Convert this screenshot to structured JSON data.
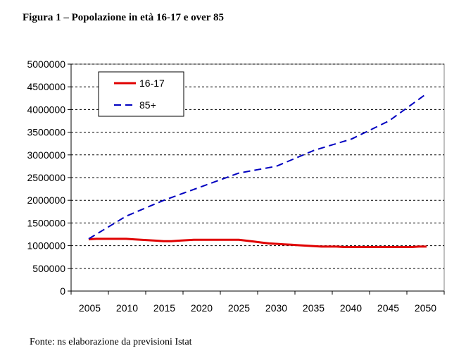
{
  "figure": {
    "title": "Figura 1 – Popolazione in età 16-17 e over 85",
    "source": "Fonte: ns elaborazione da previsioni Istat"
  },
  "chart_data": {
    "type": "line",
    "title": "Figura 1 – Popolazione in età 16-17 e over 85",
    "xlabel": "",
    "ylabel": "",
    "ylim": [
      0,
      5000000
    ],
    "y_ticks": [
      0,
      500000,
      1000000,
      1500000,
      2000000,
      2500000,
      3000000,
      3500000,
      4000000,
      4500000,
      5000000
    ],
    "y_tick_labels": [
      "0",
      "500000",
      "1000000",
      "1500000",
      "2000000",
      "2500000",
      "3000000",
      "3500000",
      "4000000",
      "4500000",
      "5000000"
    ],
    "x_tick_labels": [
      "2005",
      "2010",
      "2015",
      "2020",
      "2025",
      "2030",
      "2035",
      "2040",
      "2045",
      "2050"
    ],
    "grid": "horizontal dashed",
    "legend_position": "top-left",
    "series": [
      {
        "name": "16-17",
        "color": "#e00000",
        "style": "solid",
        "x": [
          2005,
          2006,
          2007,
          2008,
          2009,
          2010,
          2011,
          2012,
          2013,
          2014,
          2015,
          2016,
          2017,
          2018,
          2019,
          2020,
          2021,
          2022,
          2023,
          2024,
          2025,
          2026,
          2027,
          2028,
          2029,
          2030,
          2031,
          2032,
          2033,
          2034,
          2035,
          2036,
          2037,
          2038,
          2039,
          2040,
          2041,
          2042,
          2043,
          2044,
          2045,
          2046,
          2047,
          2048,
          2049,
          2050
        ],
        "values": [
          1140000,
          1150000,
          1150000,
          1150000,
          1150000,
          1150000,
          1140000,
          1130000,
          1120000,
          1110000,
          1100000,
          1100000,
          1110000,
          1120000,
          1130000,
          1130000,
          1130000,
          1130000,
          1130000,
          1130000,
          1130000,
          1110000,
          1090000,
          1070000,
          1050000,
          1040000,
          1030000,
          1020000,
          1010000,
          1000000,
          990000,
          980000,
          980000,
          980000,
          970000,
          970000,
          970000,
          970000,
          970000,
          970000,
          970000,
          970000,
          970000,
          970000,
          980000,
          980000
        ]
      },
      {
        "name": "85+",
        "color": "#0000c0",
        "style": "dashed",
        "x": [
          2005,
          2010,
          2015,
          2020,
          2025,
          2030,
          2035,
          2040,
          2045,
          2050
        ],
        "values": [
          1150000,
          1650000,
          2000000,
          2300000,
          2600000,
          2750000,
          3100000,
          3350000,
          3750000,
          4350000
        ]
      }
    ]
  }
}
